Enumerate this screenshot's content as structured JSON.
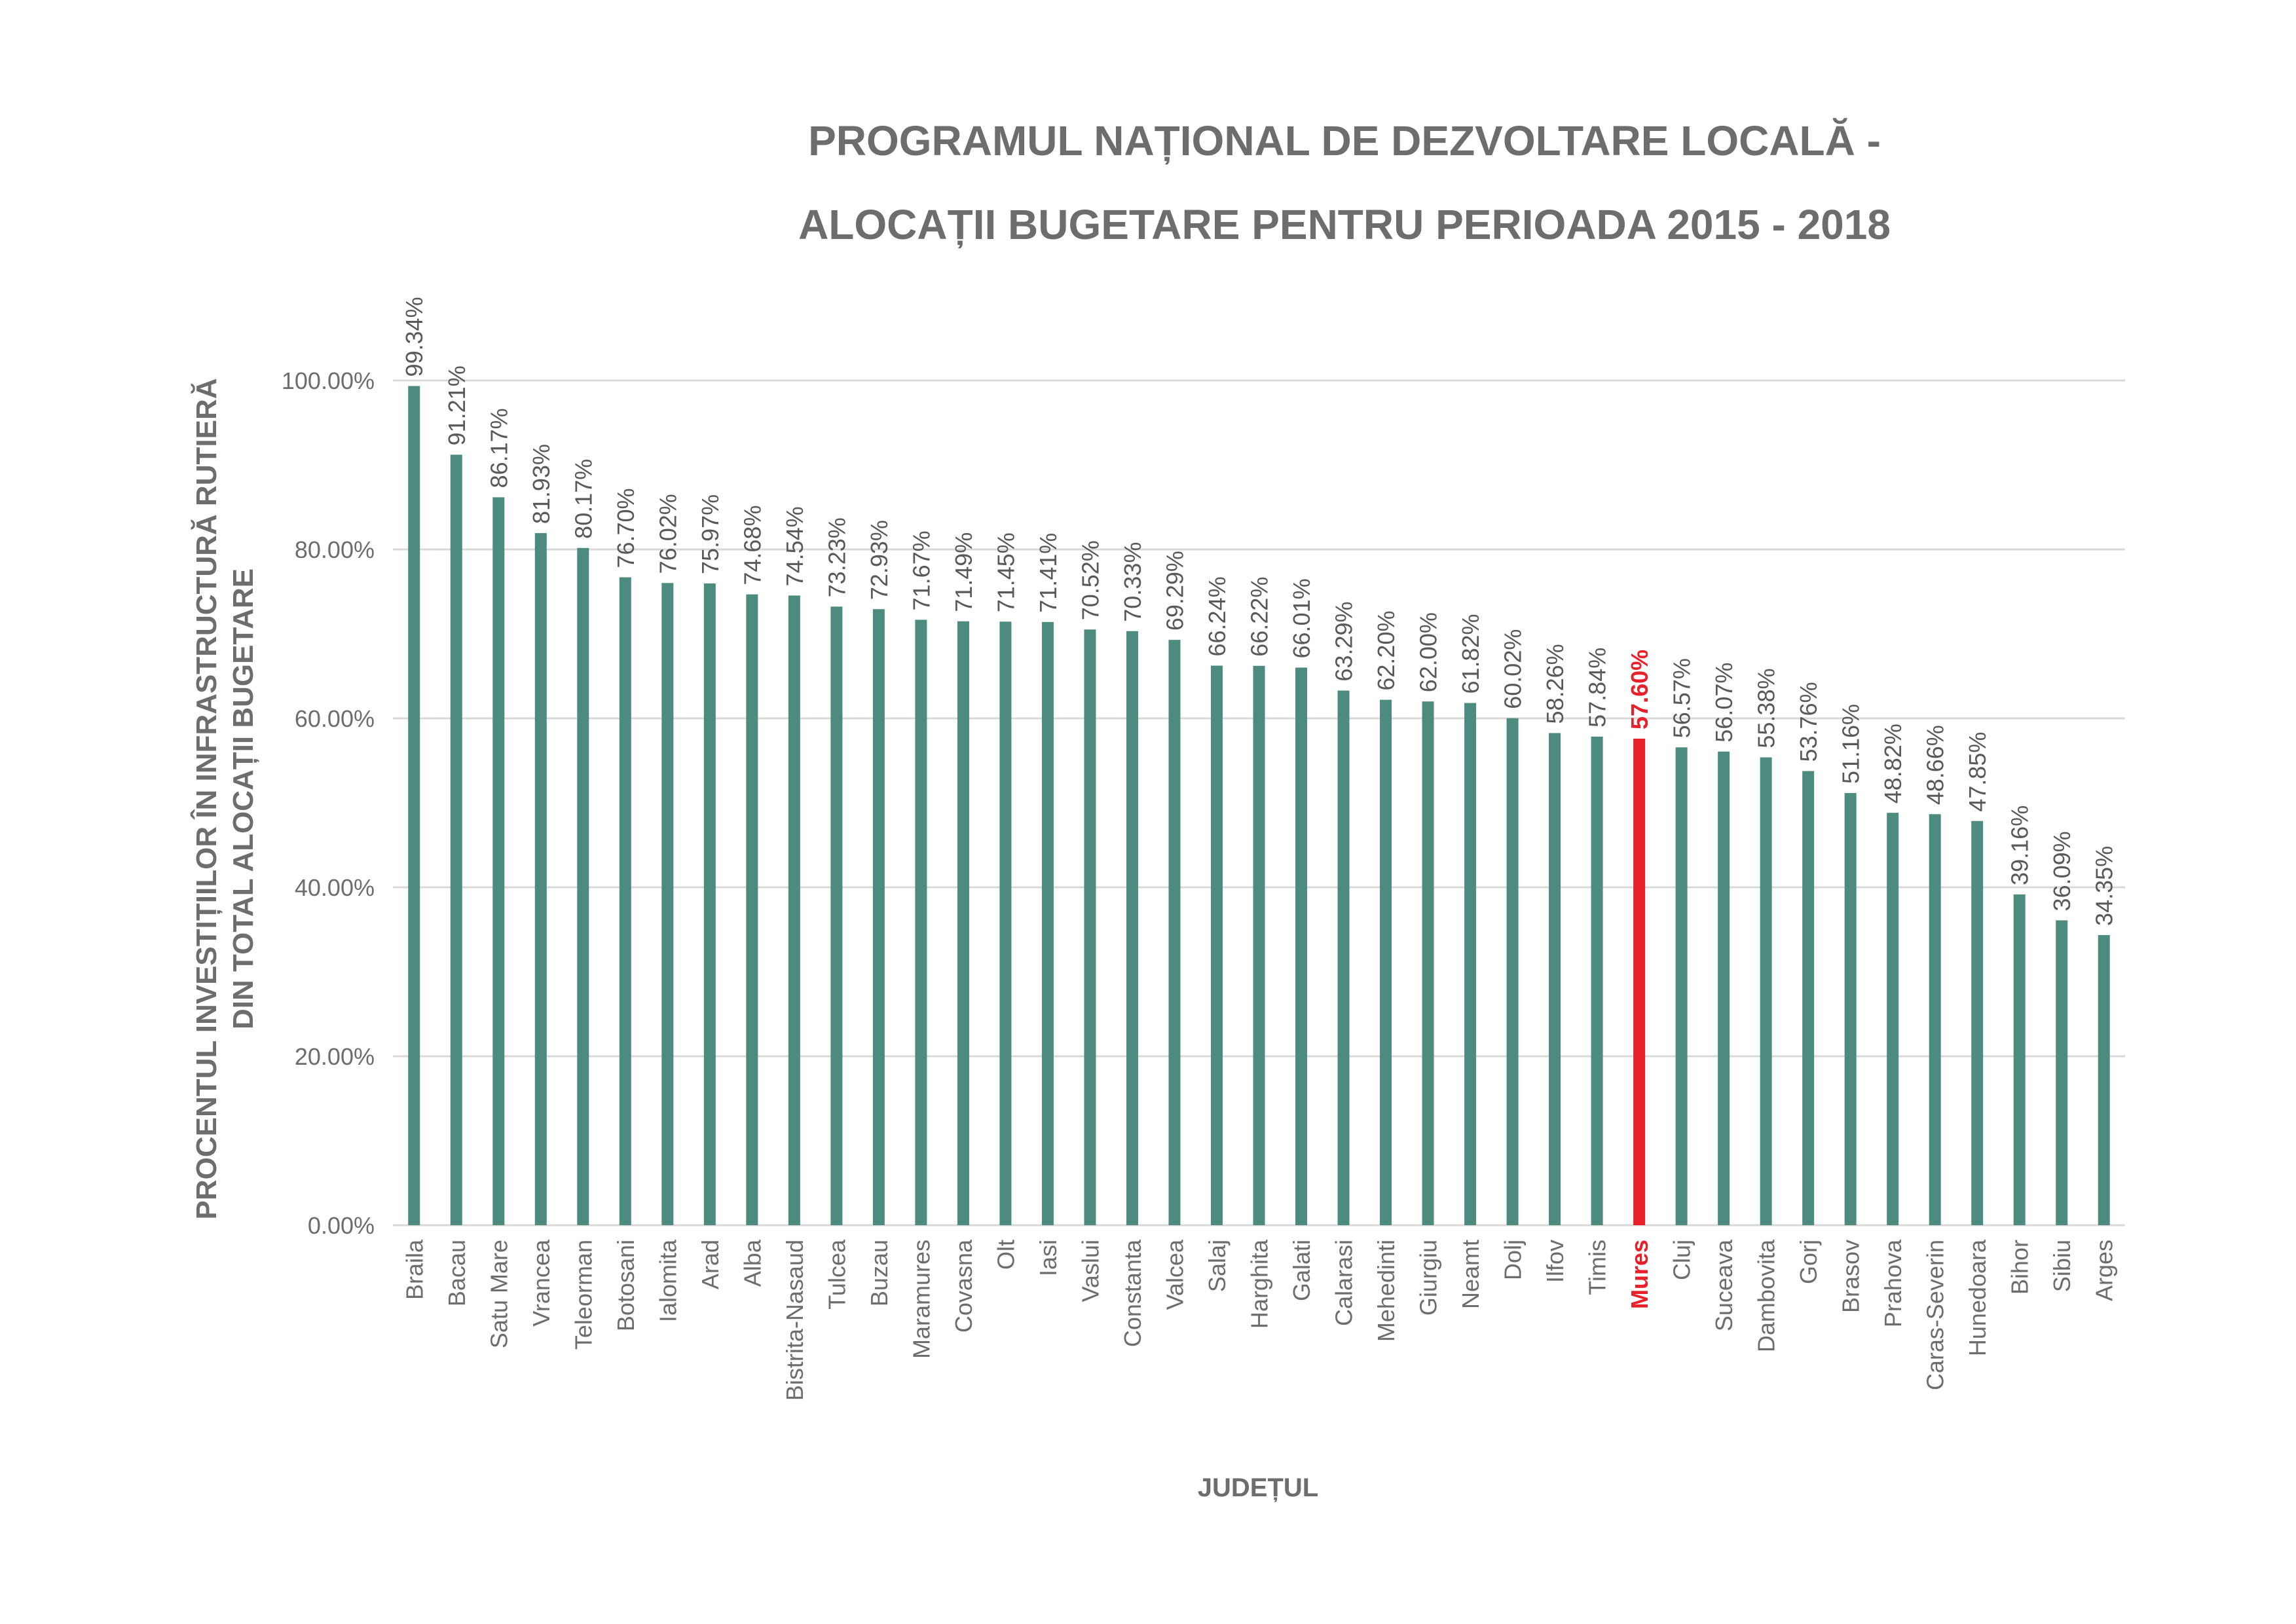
{
  "title_lines": [
    "PROGRAMUL NAȚIONAL DE DEZVOLTARE LOCALĂ  -",
    "ALOCAȚII BUGETARE PENTRU PERIOADA 2015 - 2018"
  ],
  "colors": {
    "bar": "#4e8b7f",
    "highlight": "#e8202a",
    "text": "#6d6d6d",
    "grid": "#d9d9d9"
  },
  "chart_data": {
    "type": "bar",
    "xlabel": "JUDEȚUL",
    "ylabel_lines": [
      "PROCENTUL INVESTIȚIILOR ÎN INFRASTRUCTURĂ RUTIERĂ",
      "DIN TOTAL ALOCAȚII BUGETARE"
    ],
    "ylim": [
      0,
      100
    ],
    "yticks": [
      0,
      20,
      40,
      60,
      80,
      100
    ],
    "ytick_labels": [
      "0.00%",
      "20.00%",
      "40.00%",
      "60.00%",
      "80.00%",
      "100.00%"
    ],
    "grid": true,
    "highlight_category": "Mures",
    "categories": [
      "Braila",
      "Bacau",
      "Satu Mare",
      "Vrancea",
      "Teleorman",
      "Botosani",
      "Ialomita",
      "Arad",
      "Alba",
      "Bistrita-Nasaud",
      "Tulcea",
      "Buzau",
      "Maramures",
      "Covasna",
      "Olt",
      "Iasi",
      "Vaslui",
      "Constanta",
      "Valcea",
      "Salaj",
      "Harghita",
      "Galati",
      "Calarasi",
      "Mehedinti",
      "Giurgiu",
      "Neamt",
      "Dolj",
      "Ilfov",
      "Timis",
      "Mures",
      "Cluj",
      "Suceava",
      "Dambovita",
      "Gorj",
      "Brasov",
      "Prahova",
      "Caras-Severin",
      "Hunedoara",
      "Bihor",
      "Sibiu",
      "Arges"
    ],
    "values": [
      99.34,
      91.21,
      86.17,
      81.93,
      80.17,
      76.7,
      76.02,
      75.97,
      74.68,
      74.54,
      73.23,
      72.93,
      71.67,
      71.49,
      71.45,
      71.41,
      70.52,
      70.33,
      69.29,
      66.24,
      66.22,
      66.01,
      63.29,
      62.2,
      62.0,
      61.82,
      60.02,
      58.26,
      57.84,
      57.6,
      56.57,
      56.07,
      55.38,
      53.76,
      51.16,
      48.82,
      48.66,
      47.85,
      39.16,
      36.09,
      34.35
    ],
    "value_labels": [
      "99.34%",
      "91.21%",
      "86.17%",
      "81.93%",
      "80.17%",
      "76.70%",
      "76.02%",
      "75.97%",
      "74.68%",
      "74.54%",
      "73.23%",
      "72.93%",
      "71.67%",
      "71.49%",
      "71.45%",
      "71.41%",
      "70.52%",
      "70.33%",
      "69.29%",
      "66.24%",
      "66.22%",
      "66.01%",
      "63.29%",
      "62.20%",
      "62.00%",
      "61.82%",
      "60.02%",
      "58.26%",
      "57.84%",
      "57.60%",
      "56.57%",
      "56.07%",
      "55.38%",
      "53.76%",
      "51.16%",
      "48.82%",
      "48.66%",
      "47.85%",
      "39.16%",
      "36.09%",
      "34.35%"
    ]
  }
}
